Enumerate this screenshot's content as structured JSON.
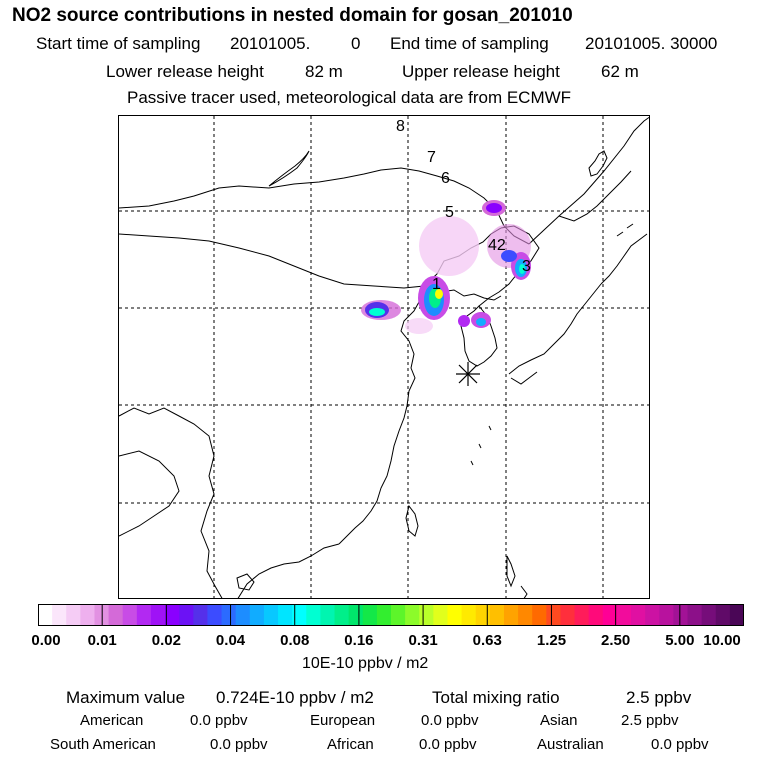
{
  "header": {
    "title": "NO2 source contributions in nested domain for gosan_201010",
    "start_label": "Start time of sampling",
    "start_value": "20101005.",
    "start_hhmm": "0",
    "end_label": "End time of sampling",
    "end_value": "20101005. 30000",
    "lower_label": "Lower release height",
    "lower_value": "82 m",
    "upper_label": "Upper release height",
    "upper_value": "62 m",
    "tracer_note": "Passive tracer used, meteorological data are from ECMWF"
  },
  "map": {
    "receptor_marker": "asterisk-icon",
    "trajectory_labels": [
      "8",
      "7",
      "6",
      "5",
      "42",
      "3",
      "1"
    ]
  },
  "colorbar": {
    "tick_labels": [
      "0.00",
      "0.01",
      "0.02",
      "0.04",
      "0.08",
      "0.16",
      "0.31",
      "0.63",
      "1.25",
      "2.50",
      "5.00",
      "10.00"
    ],
    "colors": [
      "#ffffff",
      "#fbe6fb",
      "#f5ccf5",
      "#eeb0ee",
      "#e291e2",
      "#d46ad8",
      "#c84ce6",
      "#b229f2",
      "#9f12f6",
      "#8a00ff",
      "#6c12f5",
      "#5530ea",
      "#3c4cff",
      "#2c6bff",
      "#1d8dff",
      "#11acff",
      "#08c8ff",
      "#00e5ff",
      "#00ffff",
      "#00ffd2",
      "#00f5b0",
      "#00ef8a",
      "#00e66b",
      "#13e848",
      "#33ee2f",
      "#5df52a",
      "#8cfb2a",
      "#baff2a",
      "#e1ff1c",
      "#ffff00",
      "#ffea00",
      "#ffd400",
      "#ffbf00",
      "#ffa300",
      "#ff8800",
      "#ff6a00",
      "#ff4a20",
      "#ff2f3c",
      "#ff1c5a",
      "#ff0a7a",
      "#ff0096",
      "#f20c9c",
      "#e010a2",
      "#cc12a3",
      "#b8129e",
      "#a21296",
      "#8c1089",
      "#760d7a",
      "#600a68",
      "#4a0656"
    ],
    "unit_label": "10E-10 ppbv / m2"
  },
  "stats": {
    "max_label": "Maximum value",
    "max_value": "0.724E-10 ppbv / m2",
    "total_label": "Total mixing ratio",
    "total_value": "2.5 ppbv",
    "regions": [
      {
        "name": "American",
        "value": "0.0 ppbv"
      },
      {
        "name": "European",
        "value": "0.0 ppbv"
      },
      {
        "name": "Asian",
        "value": "2.5 ppbv"
      },
      {
        "name": "South American",
        "value": "0.0 ppbv"
      },
      {
        "name": "African",
        "value": "0.0 ppbv"
      },
      {
        "name": "Australian",
        "value": "0.0 ppbv"
      }
    ]
  }
}
